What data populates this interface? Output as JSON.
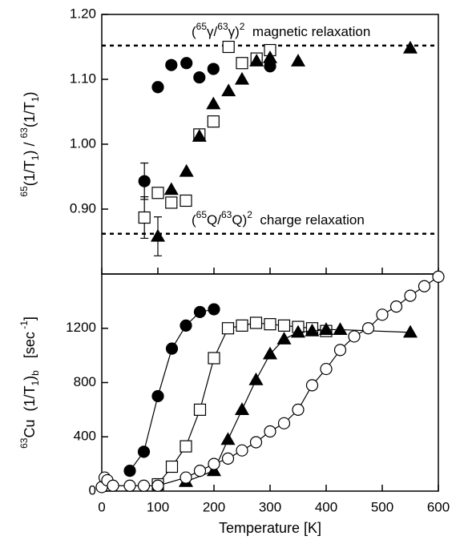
{
  "chart_data": [
    {
      "type": "scatter",
      "ylabel": [
        {
          "text": "65",
          "script": "sup"
        },
        "(1/T",
        {
          "text": "1",
          "script": "sub"
        },
        ") / ",
        {
          "text": "63",
          "script": "sup"
        },
        "(1/T",
        {
          "text": "1",
          "script": "sub"
        },
        ")"
      ],
      "xlim": [
        0,
        600
      ],
      "ylim": [
        0.8,
        1.2
      ],
      "xticks": [
        0,
        100,
        200,
        300,
        400,
        500,
        600
      ],
      "yticks": [
        {
          "value": 0.9,
          "label": "0.90"
        },
        {
          "value": 1.0,
          "label": "1.00"
        },
        {
          "value": 1.1,
          "label": "1.10"
        },
        {
          "value": 1.2,
          "label": "1.20"
        }
      ],
      "reference_lines": [
        1.152,
        0.862
      ],
      "annotations": [
        [
          "(",
          {
            "text": "65",
            "script": "sup"
          },
          "γ/",
          {
            "text": "63",
            "script": "sup"
          },
          "γ)",
          {
            "text": "2",
            "script": "sup"
          },
          "  magnetic relaxation"
        ],
        [
          "(",
          {
            "text": "65",
            "script": "sup"
          },
          "Q/",
          {
            "text": "63",
            "script": "sup"
          },
          "Q)",
          {
            "text": "2",
            "script": "sup"
          },
          "  charge relaxation"
        ]
      ],
      "series": [
        {
          "color": "#000000",
          "marker": "circle",
          "filled": true,
          "x": [
            76,
            100,
            124,
            151,
            174,
            199,
            300
          ],
          "values": [
            0.943,
            1.088,
            1.122,
            1.125,
            1.103,
            1.116,
            1.12
          ],
          "errors": [
            0.028,
            null,
            null,
            null,
            null,
            null,
            null
          ]
        },
        {
          "color": "#000000",
          "marker": "square",
          "filled": false,
          "x": [
            76,
            100,
            124,
            150,
            174,
            199,
            226,
            250,
            276,
            300
          ],
          "values": [
            0.887,
            0.925,
            0.91,
            0.913,
            1.015,
            1.035,
            1.15,
            1.125,
            1.132,
            1.145
          ],
          "errors": [
            0.032,
            null,
            null,
            null,
            null,
            null,
            null,
            null,
            null,
            null
          ]
        },
        {
          "color": "#000000",
          "marker": "triangle",
          "filled": true,
          "x": [
            100,
            124,
            151,
            174,
            199,
            226,
            250,
            276,
            300,
            350,
            550
          ],
          "values": [
            0.858,
            0.93,
            0.958,
            1.012,
            1.062,
            1.082,
            1.1,
            1.128,
            1.133,
            1.128,
            1.148
          ],
          "errors": [
            0.03,
            null,
            null,
            null,
            null,
            null,
            null,
            null,
            null,
            null,
            null
          ]
        }
      ]
    },
    {
      "type": "scatter",
      "xlabel": "Temperature [K]",
      "ylabel": [
        {
          "text": "63",
          "script": "sup"
        },
        "Cu  (1/T",
        {
          "text": "1",
          "script": "sub"
        },
        ")",
        {
          "text": "b",
          "script": "sub"
        },
        "   [sec",
        {
          "text": " -1",
          "script": "sup"
        },
        "]"
      ],
      "xlim": [
        0,
        600
      ],
      "ylim": [
        0,
        1600
      ],
      "xticks": [
        0,
        100,
        200,
        300,
        400,
        500,
        600
      ],
      "yticks": [
        0,
        400,
        800,
        1200
      ],
      "series": [
        {
          "color": "#000000",
          "marker": "circle",
          "filled": true,
          "line": true,
          "x": [
            50,
            75,
            100,
            125,
            150,
            175,
            200
          ],
          "values": [
            150,
            290,
            700,
            1050,
            1220,
            1320,
            1340
          ]
        },
        {
          "color": "#000000",
          "marker": "square",
          "filled": false,
          "line": true,
          "x": [
            100,
            125,
            150,
            175,
            200,
            225,
            250,
            275,
            300,
            325,
            350,
            375,
            400
          ],
          "values": [
            50,
            180,
            330,
            600,
            980,
            1200,
            1220,
            1240,
            1230,
            1220,
            1210,
            1200,
            1180
          ]
        },
        {
          "color": "#000000",
          "marker": "triangle",
          "filled": true,
          "line": true,
          "x": [
            150,
            200,
            225,
            250,
            275,
            300,
            325,
            350,
            375,
            400,
            425,
            550
          ],
          "values": [
            70,
            150,
            380,
            600,
            820,
            1010,
            1120,
            1170,
            1180,
            1190,
            1190,
            1170
          ]
        },
        {
          "color": "#000000",
          "marker": "circle",
          "filled": false,
          "line": true,
          "x": [
            0,
            5,
            10,
            20,
            50,
            75,
            100,
            150,
            175,
            200,
            225,
            250,
            275,
            300,
            325,
            350,
            375,
            400,
            425,
            450,
            475,
            500,
            525,
            550,
            575,
            600
          ],
          "values": [
            30,
            100,
            80,
            40,
            40,
            40,
            40,
            100,
            150,
            200,
            240,
            300,
            360,
            440,
            500,
            600,
            780,
            900,
            1040,
            1140,
            1200,
            1300,
            1360,
            1440,
            1510,
            1580
          ]
        }
      ]
    }
  ]
}
